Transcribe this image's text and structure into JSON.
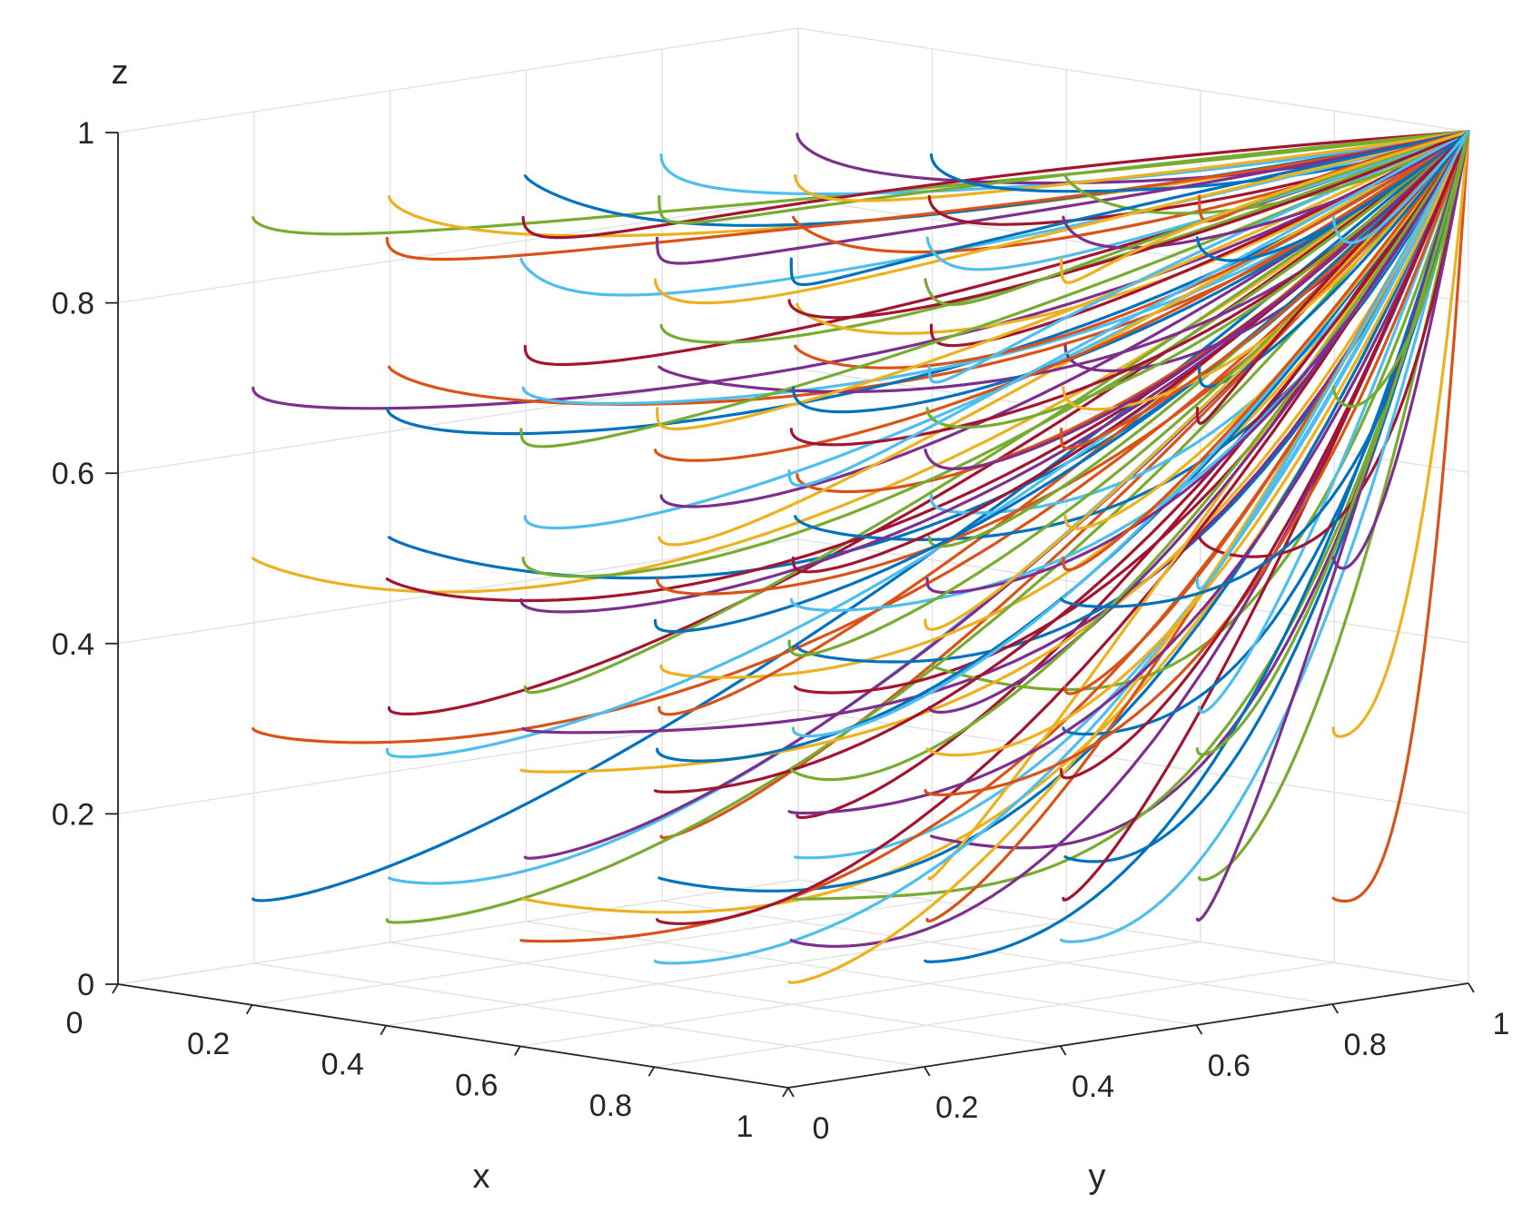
{
  "chart_data": {
    "type": "line3d",
    "title": "",
    "xlabel": "x",
    "ylabel": "y",
    "zlabel": "z",
    "xlim": [
      0,
      1
    ],
    "ylim": [
      0,
      1
    ],
    "zlim": [
      0,
      1
    ],
    "xticks": [
      "0",
      "0.2",
      "0.4",
      "0.6",
      "0.8",
      "1"
    ],
    "yticks": [
      "0",
      "0.2",
      "0.4",
      "0.6",
      "0.8",
      "1"
    ],
    "zticks": [
      "0",
      "0.2",
      "0.4",
      "0.6",
      "0.8",
      "1"
    ],
    "grid": true,
    "colors": [
      "#0072BD",
      "#D95319",
      "#EDB120",
      "#7E2F8E",
      "#77AC30",
      "#4DBEEE",
      "#A2142F"
    ],
    "trajectory_end": [
      1,
      1,
      1
    ],
    "initial_x_levels": [
      0.1,
      0.3,
      0.5,
      0.7,
      0.9
    ],
    "initial_y_levels": [
      0.1,
      0.3,
      0.5,
      0.7,
      0.9
    ],
    "initial_z_levels": [
      0.1,
      0.3,
      0.5,
      0.7,
      0.9
    ],
    "trajectory_count": 125
  }
}
